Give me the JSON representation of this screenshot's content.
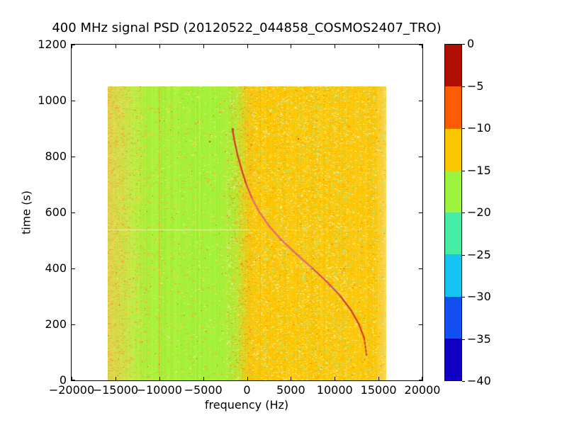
{
  "chart_data": {
    "type": "heatmap",
    "title": "400 MHz signal PSD (20120522_044858_COSMOS2407_TRO)",
    "xlabel": "frequency (Hz)",
    "ylabel": "time (s)",
    "xlim": [
      -20000,
      20000
    ],
    "ylim": [
      0,
      1200
    ],
    "xticks": [
      -20000,
      -15000,
      -10000,
      -5000,
      0,
      5000,
      10000,
      15000,
      20000
    ],
    "xtick_labels": [
      "−20000",
      "−15000",
      "−10000",
      "−5000",
      "0",
      "5000",
      "10000",
      "15000",
      "20000"
    ],
    "yticks": [
      0,
      200,
      400,
      600,
      800,
      1000,
      1200
    ],
    "ytick_labels": [
      "0",
      "200",
      "400",
      "600",
      "800",
      "1000",
      "1200"
    ],
    "grid": false,
    "legend": "none",
    "data_extent": {
      "freq_hz": [
        -15800,
        15800
      ],
      "time_s": [
        0,
        1047
      ]
    },
    "colorbar": {
      "position": "right",
      "tick_values": [
        0,
        -5,
        -10,
        -15,
        -20,
        -25,
        -30,
        -35,
        -40
      ],
      "tick_labels": [
        "0",
        "−5",
        "−10",
        "−15",
        "−20",
        "−25",
        "−30",
        "−35",
        "−40"
      ],
      "segments": [
        {
          "range_db": [
            0,
            -5
          ],
          "color": "#b10e06"
        },
        {
          "range_db": [
            -5,
            -10
          ],
          "color": "#fb5c00"
        },
        {
          "range_db": [
            -10,
            -15
          ],
          "color": "#fdc700"
        },
        {
          "range_db": [
            -15,
            -20
          ],
          "color": "#9cf43f"
        },
        {
          "range_db": [
            -20,
            -25
          ],
          "color": "#46eda2"
        },
        {
          "range_db": [
            -25,
            -30
          ],
          "color": "#17c3f1"
        },
        {
          "range_db": [
            -30,
            -35
          ],
          "color": "#1450f0"
        },
        {
          "range_db": [
            -35,
            -40
          ],
          "color": "#0e00c4"
        }
      ]
    },
    "background_bands": [
      {
        "freq_range": [
          -15800,
          -13000
        ],
        "color": "#ded24b",
        "level_db": "≈ -14",
        "desc": "olive-yellow left edge with orange streaks"
      },
      {
        "freq_range": [
          -13000,
          -10800
        ],
        "color": "#b7ec40",
        "level_db": "≈ -16",
        "desc": "gradient into green"
      },
      {
        "freq_range": [
          -10800,
          -2400
        ],
        "color": "#a6f03a",
        "level_db": "≈ -17",
        "desc": "solid green band"
      },
      {
        "freq_range": [
          -2400,
          400
        ],
        "color": "#e0d220",
        "level_db": "≈ -14",
        "desc": "speckled green/orange transition"
      },
      {
        "freq_range": [
          400,
          14600
        ],
        "color": "#fdc602",
        "level_db": "≈ -12",
        "desc": "amber band with dense speckle"
      },
      {
        "freq_range": [
          14600,
          15800
        ],
        "color": "#fdd95a",
        "level_db": "≈ -11",
        "desc": "lighter right edge striping"
      }
    ],
    "vertical_lines": [
      {
        "freq": -10000,
        "color": "#f59d30",
        "opacity": 0.8
      },
      {
        "freq": -8500,
        "color": "#f5b63e",
        "opacity": 0.5
      },
      {
        "freq": -5400,
        "color": "#e3f77e",
        "opacity": 0.6
      },
      {
        "freq": 1500,
        "color": "#f0a800",
        "opacity": 0.55
      },
      {
        "freq": 3200,
        "color": "#f2b200",
        "opacity": 0.35
      }
    ],
    "horizontal_lines": [
      {
        "time": 537,
        "color_left": "#eef9a0",
        "color_right": "#ffd94d",
        "opacity": 0.85
      },
      {
        "time": 878,
        "color_left": "#f6bb42",
        "color_right": "#f6bb42",
        "opacity": 0.3
      }
    ],
    "doppler_curve": {
      "desc": "narrowband satellite Doppler S-curve near 0 dB",
      "color": "#d5372a",
      "mid_color": "#d84a5e",
      "core_color": "#f2a3b2",
      "points_freq_time": [
        [
          -1650,
          895
        ],
        [
          -1400,
          850
        ],
        [
          -1050,
          800
        ],
        [
          -600,
          750
        ],
        [
          -100,
          700
        ],
        [
          550,
          650
        ],
        [
          1400,
          600
        ],
        [
          2500,
          550
        ],
        [
          3900,
          500
        ],
        [
          5600,
          450
        ],
        [
          7400,
          400
        ],
        [
          9100,
          350
        ],
        [
          10600,
          300
        ],
        [
          11800,
          250
        ],
        [
          12700,
          200
        ],
        [
          13300,
          150
        ],
        [
          13560,
          90
        ]
      ]
    },
    "noise_speckle": {
      "left_streak_colors": [
        "#f2a63c",
        "#ffd24a",
        "#dfe46a"
      ],
      "green_zone_colors": [
        "#f4a43c",
        "#ffd24a",
        "#dff08a",
        "#c6ef4e"
      ],
      "transition_orange_colors": [
        "#fdc602",
        "#f9b31a",
        "#f2911e"
      ],
      "transition_green_colors": [
        "#a6f03a",
        "#c6ef4e",
        "#dff08a"
      ],
      "amber_zone_colors": [
        "#ffdf70",
        "#cde65a",
        "#a8e88c",
        "#f5ae00",
        "#ffeaa0"
      ],
      "red_speck_color": "#e0331f",
      "fixed_red_specks_freq_time": [
        [
          -4300,
          852
        ],
        [
          5755,
          862
        ]
      ]
    }
  }
}
